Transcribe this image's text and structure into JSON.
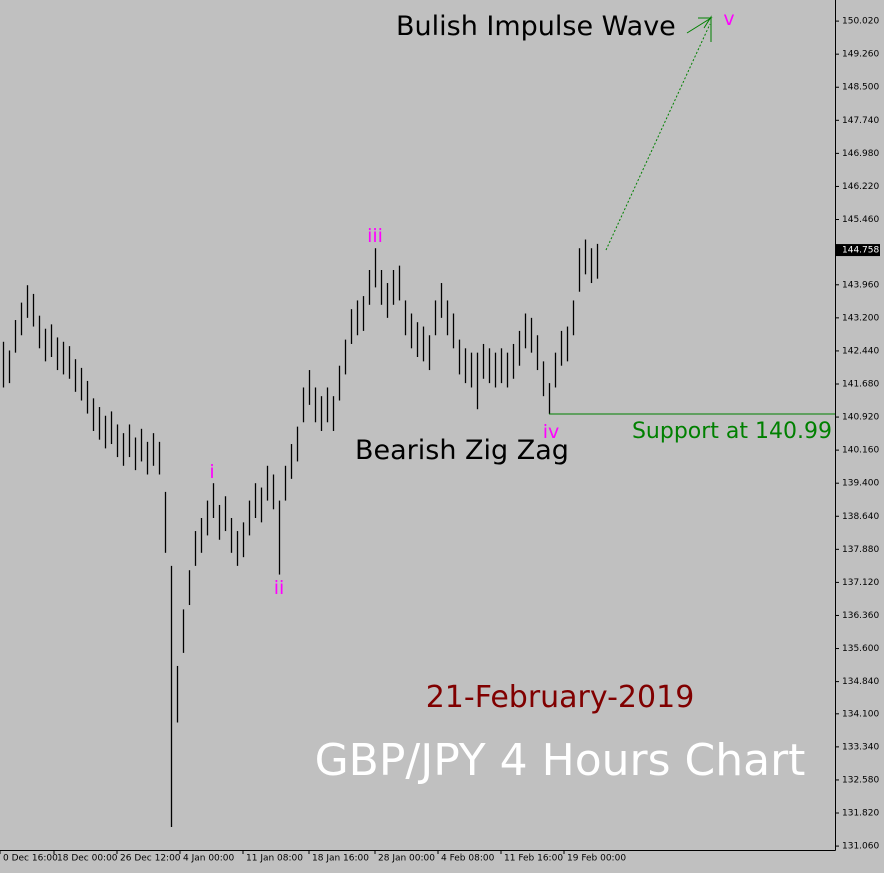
{
  "chart_data": {
    "type": "hl_bar",
    "title": "GBP/JPY 4 Hours Chart",
    "subtitle": "21-February-2019",
    "color": "#000000",
    "high": [
      142.65,
      142.45,
      143.15,
      143.55,
      143.95,
      143.75,
      143.25,
      142.95,
      143.05,
      142.75,
      142.65,
      142.55,
      142.25,
      142.05,
      141.75,
      141.35,
      141.15,
      140.95,
      141.05,
      140.75,
      140.55,
      140.75,
      140.45,
      140.65,
      140.35,
      140.55,
      140.35,
      139.2,
      137.5,
      135.2,
      136.5,
      137.4,
      138.3,
      138.6,
      139.0,
      139.4,
      138.9,
      139.1,
      138.6,
      138.3,
      138.5,
      139.0,
      139.4,
      139.3,
      139.8,
      139.6,
      139.0,
      139.8,
      140.3,
      140.7,
      141.6,
      142.0,
      141.6,
      141.4,
      141.6,
      141.4,
      142.1,
      142.7,
      143.4,
      143.6,
      143.7,
      144.3,
      144.8,
      144.3,
      144.0,
      144.3,
      144.4,
      143.6,
      143.3,
      143.1,
      143.0,
      142.8,
      143.6,
      144.0,
      143.6,
      143.3,
      142.7,
      142.5,
      142.4,
      142.4,
      142.6,
      142.5,
      142.4,
      142.5,
      142.4,
      142.6,
      142.9,
      143.3,
      143.2,
      142.8,
      142.2,
      141.7,
      142.4,
      142.9,
      143.0,
      143.6,
      144.8,
      145.0,
      144.8,
      144.9
    ],
    "low": [
      141.6,
      141.7,
      142.4,
      142.8,
      143.2,
      143.0,
      142.5,
      142.2,
      142.3,
      142.0,
      141.9,
      141.8,
      141.5,
      141.3,
      141.0,
      140.6,
      140.4,
      140.2,
      140.3,
      140.0,
      139.8,
      140.0,
      139.7,
      139.9,
      139.6,
      139.8,
      139.6,
      137.8,
      131.5,
      133.9,
      135.5,
      136.6,
      137.5,
      137.8,
      138.2,
      138.6,
      138.1,
      138.3,
      137.8,
      137.5,
      137.7,
      138.2,
      138.6,
      138.5,
      139.0,
      138.8,
      137.3,
      139.0,
      139.5,
      139.9,
      140.8,
      141.2,
      140.8,
      140.6,
      140.8,
      140.6,
      141.3,
      141.9,
      142.6,
      142.8,
      142.9,
      143.5,
      143.9,
      143.5,
      143.2,
      143.5,
      143.6,
      142.8,
      142.5,
      142.3,
      142.2,
      142.0,
      142.8,
      143.2,
      142.8,
      142.5,
      141.9,
      141.7,
      141.6,
      141.1,
      141.8,
      141.7,
      141.6,
      141.7,
      141.6,
      141.8,
      142.1,
      142.5,
      142.4,
      142.0,
      141.4,
      140.99,
      141.6,
      142.1,
      142.2,
      142.8,
      143.8,
      144.2,
      144.0,
      144.1
    ],
    "xlim": [
      -0.5,
      99.5
    ],
    "xticks": [
      {
        "value": -0.5,
        "label": "0 Dec 16:00"
      },
      {
        "value": 8.5,
        "label": "18 Dec 00:00"
      },
      {
        "value": 19,
        "label": "26 Dec 12:00"
      },
      {
        "value": 29.5,
        "label": "4 Jan 00:00"
      },
      {
        "value": 40,
        "label": "11 Jan 08:00"
      },
      {
        "value": 51,
        "label": "18 Jan 16:00"
      },
      {
        "value": 62,
        "label": "28 Jan 00:00"
      },
      {
        "value": 72.5,
        "label": "4 Feb 08:00"
      },
      {
        "value": 83,
        "label": "11 Feb 16:00"
      },
      {
        "value": 93.5,
        "label": "19 Feb 00:00"
      }
    ],
    "ylim": [
      130.97,
      150.39
    ],
    "yticks": [
      {
        "value": 150.02,
        "label": "150.020"
      },
      {
        "value": 149.26,
        "label": "149.260"
      },
      {
        "value": 148.5,
        "label": "148.500"
      },
      {
        "value": 147.74,
        "label": "147.740"
      },
      {
        "value": 146.98,
        "label": "146.980"
      },
      {
        "value": 146.22,
        "label": "146.220"
      },
      {
        "value": 145.46,
        "label": "145.460"
      },
      {
        "value": 143.96,
        "label": "143.960"
      },
      {
        "value": 143.2,
        "label": "143.200"
      },
      {
        "value": 142.44,
        "label": "142.440"
      },
      {
        "value": 141.68,
        "label": "141.680"
      },
      {
        "value": 140.92,
        "label": "140.920"
      },
      {
        "value": 140.16,
        "label": "140.160"
      },
      {
        "value": 139.4,
        "label": "139.400"
      },
      {
        "value": 138.64,
        "label": "138.640"
      },
      {
        "value": 137.88,
        "label": "137.880"
      },
      {
        "value": 137.12,
        "label": "137.120"
      },
      {
        "value": 136.36,
        "label": "136.360"
      },
      {
        "value": 135.6,
        "label": "135.600"
      },
      {
        "value": 134.84,
        "label": "134.840"
      },
      {
        "value": 134.1,
        "label": "134.100"
      },
      {
        "value": 133.34,
        "label": "133.340"
      },
      {
        "value": 132.58,
        "label": "132.580"
      },
      {
        "value": 131.82,
        "label": "131.820"
      },
      {
        "value": 131.06,
        "label": "131.060"
      }
    ],
    "last_price": 144.758,
    "support": {
      "value": 140.99,
      "label": "Support at 140.99",
      "color": "#008000",
      "start": 91
    },
    "annotations": {
      "impulse": "Bulish Impulse Wave",
      "zigzag": "Bearish Zig Zag",
      "waves": [
        "i",
        "ii",
        "iii",
        "iv",
        "v"
      ]
    }
  }
}
